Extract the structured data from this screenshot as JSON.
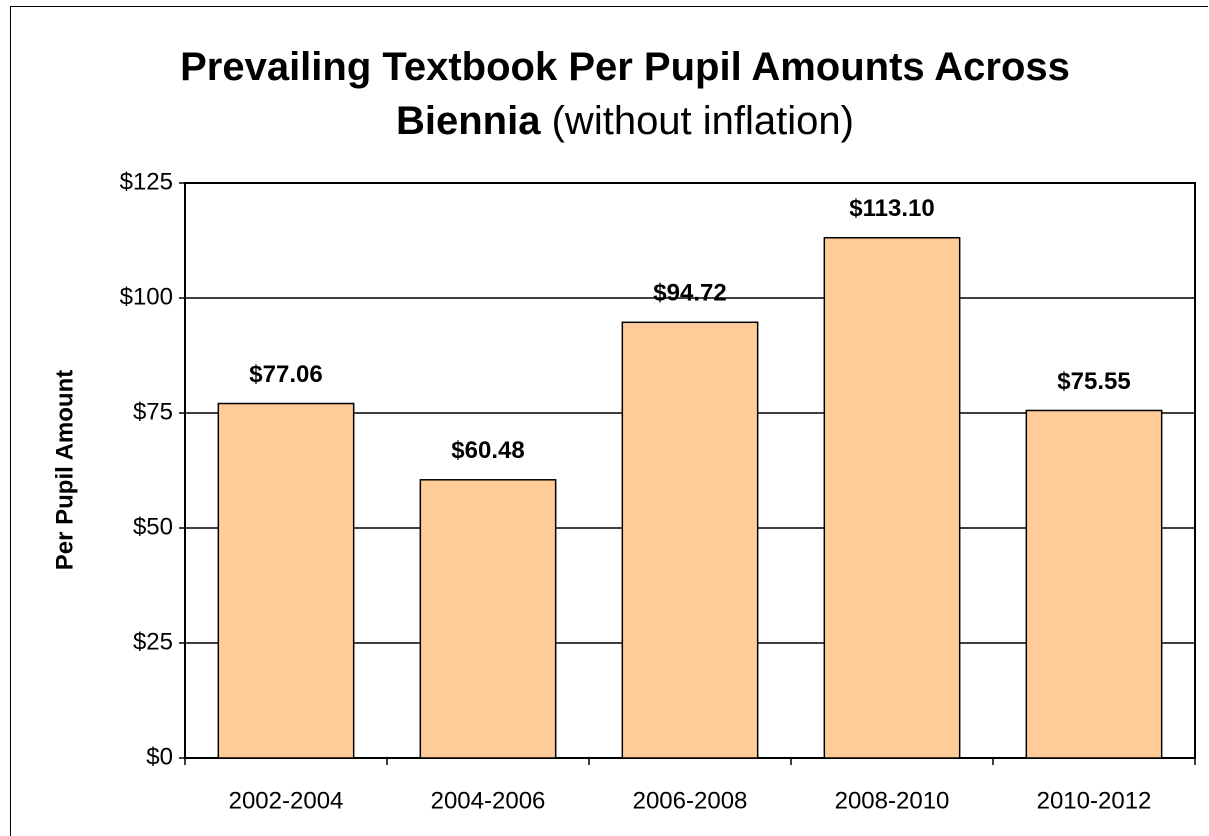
{
  "chart_data": {
    "type": "bar",
    "title": "Prevailing Textbook Per Pupil Amounts Across Biennia",
    "subtitle": "(without inflation)",
    "y_label": "Per Pupil Amount",
    "categories": [
      "2002-2004",
      "2004-2006",
      "2006-2008",
      "2008-2010",
      "2010-2012"
    ],
    "values": [
      77.06,
      60.48,
      94.72,
      113.1,
      75.55
    ],
    "value_labels": [
      "$77.06",
      "$60.48",
      "$94.72",
      "$113.10",
      "$75.55"
    ],
    "color": "#ffcc99",
    "ylim": [
      0,
      125
    ],
    "yticks": [
      {
        "value": 0,
        "label": "$0"
      },
      {
        "value": 25,
        "label": "$25"
      },
      {
        "value": 50,
        "label": "$50"
      },
      {
        "value": 75,
        "label": "$75"
      },
      {
        "value": 100,
        "label": "$100"
      },
      {
        "value": 125,
        "label": "$125"
      }
    ],
    "grid": true
  }
}
